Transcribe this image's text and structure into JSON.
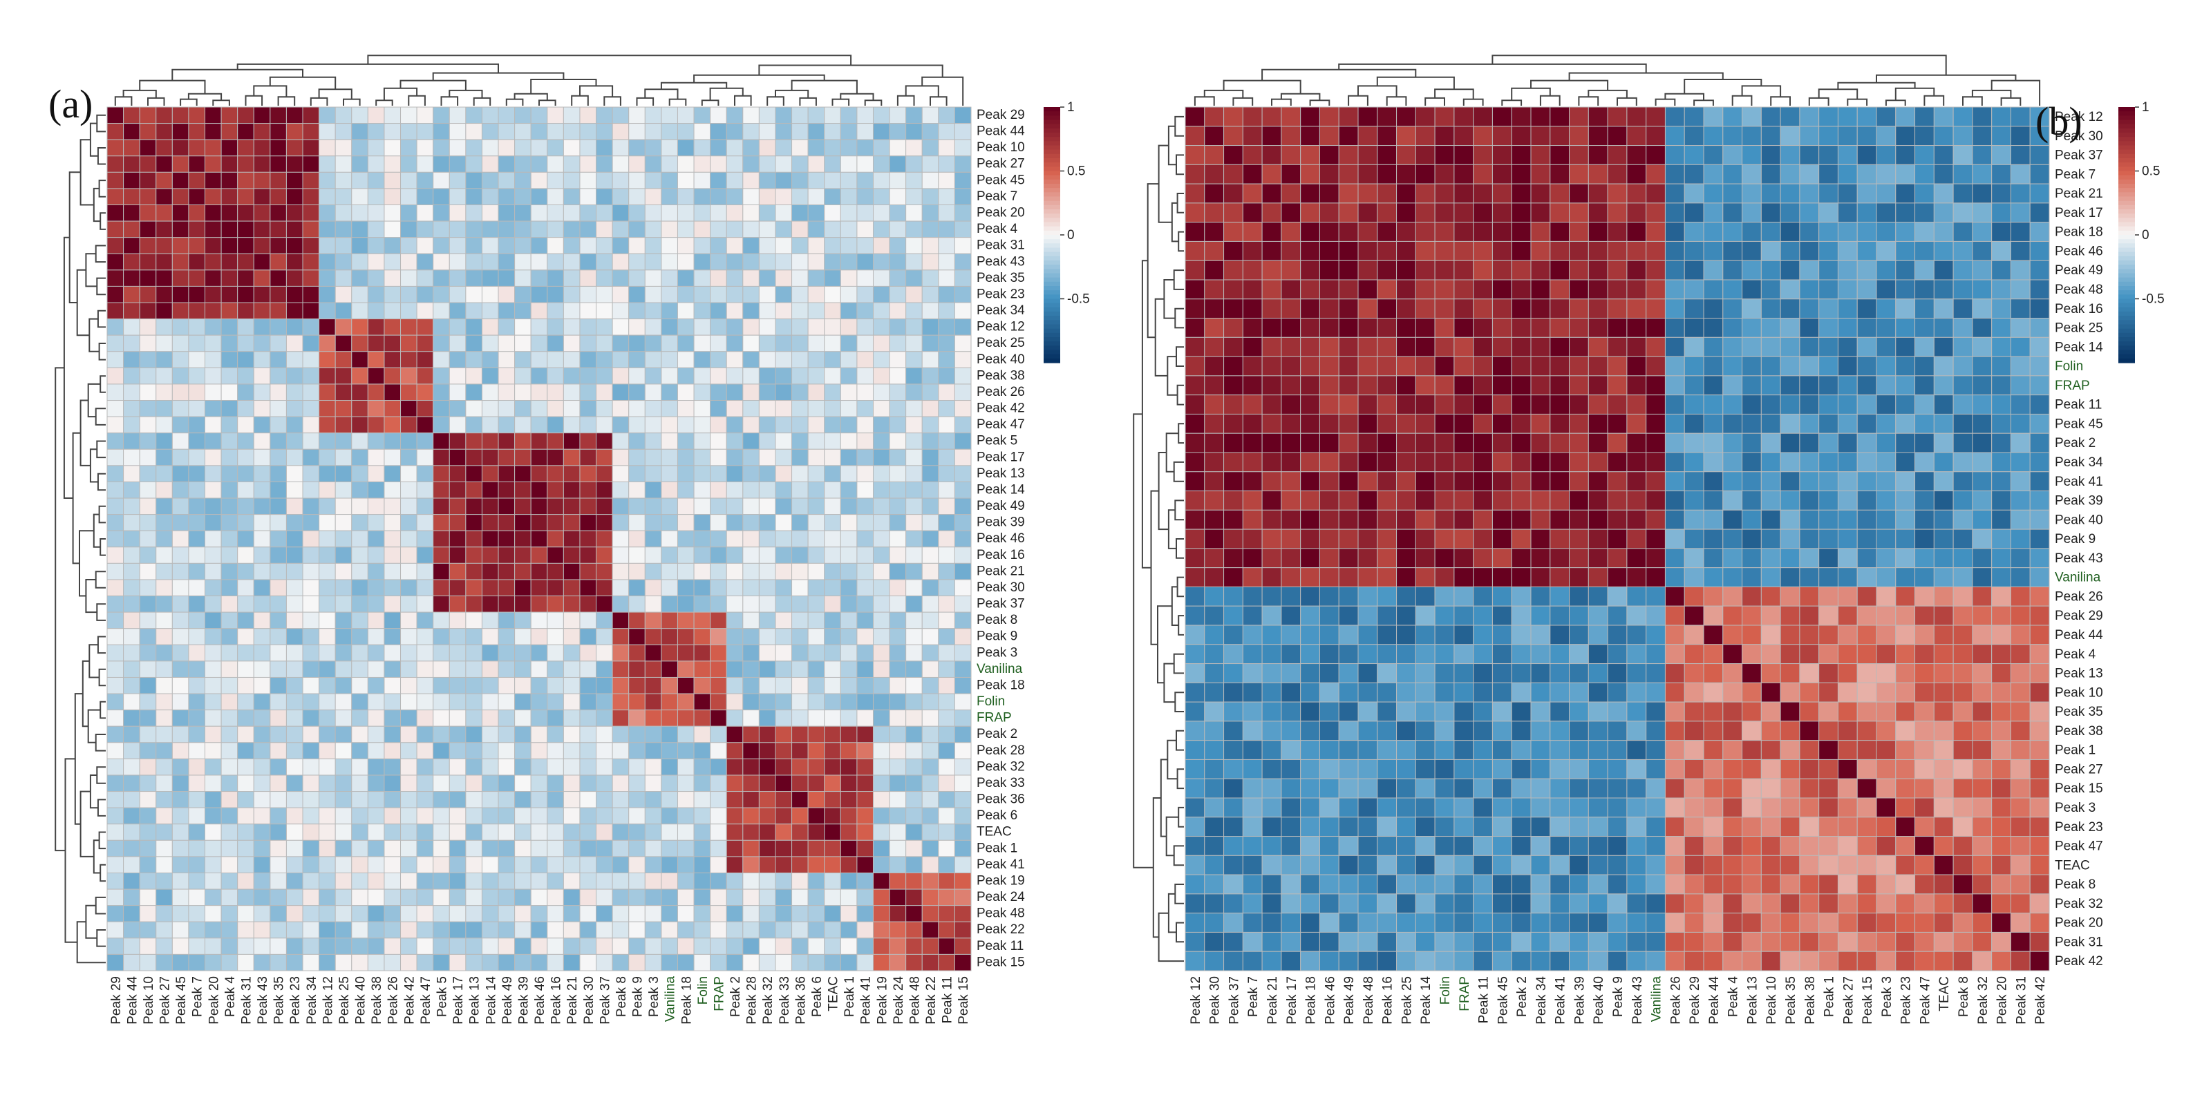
{
  "chart_data": [
    {
      "type": "heatmap",
      "panel_label": "(a)",
      "title": "",
      "row_labels": [
        "Peak 29",
        "Peak 44",
        "Peak 10",
        "Peak 27",
        "Peak 45",
        "Peak 7",
        "Peak 20",
        "Peak 4",
        "Peak 31",
        "Peak 43",
        "Peak 35",
        "Peak 23",
        "Peak 34",
        "Peak 12",
        "Peak 25",
        "Peak 40",
        "Peak 38",
        "Peak 26",
        "Peak 42",
        "Peak 47",
        "Peak 5",
        "Peak 17",
        "Peak 13",
        "Peak 14",
        "Peak 49",
        "Peak 39",
        "Peak 46",
        "Peak 16",
        "Peak 21",
        "Peak 30",
        "Peak 37",
        "Peak 8",
        "Peak 9",
        "Peak 3",
        "Vanilina",
        "Peak 18",
        "Folin",
        "FRAP",
        "Peak 2",
        "Peak 28",
        "Peak 32",
        "Peak 33",
        "Peak 36",
        "Peak 6",
        "TEAC",
        "Peak 1",
        "Peak 41",
        "Peak 19",
        "Peak 24",
        "Peak 48",
        "Peak 22",
        "Peak 11",
        "Peak 15"
      ],
      "col_labels": [
        "Peak 29",
        "Peak 44",
        "Peak 10",
        "Peak 27",
        "Peak 45",
        "Peak 7",
        "Peak 20",
        "Peak 4",
        "Peak 31",
        "Peak 43",
        "Peak 35",
        "Peak 23",
        "Peak 34",
        "Peak 12",
        "Peak 25",
        "Peak 40",
        "Peak 38",
        "Peak 26",
        "Peak 42",
        "Peak 47",
        "Peak 5",
        "Peak 17",
        "Peak 13",
        "Peak 14",
        "Peak 49",
        "Peak 39",
        "Peak 46",
        "Peak 16",
        "Peak 21",
        "Peak 30",
        "Peak 37",
        "Peak 8",
        "Peak 9",
        "Peak 3",
        "Vanilina",
        "Peak 18",
        "Folin",
        "FRAP",
        "Peak 2",
        "Peak 28",
        "Peak 32",
        "Peak 33",
        "Peak 36",
        "Peak 6",
        "TEAC",
        "Peak 1",
        "Peak 41",
        "Peak 19",
        "Peak 24",
        "Peak 48",
        "Peak 22",
        "Peak 11",
        "Peak 15"
      ],
      "clusters": [
        {
          "range": [
            0,
            12
          ],
          "value": 0.85
        },
        {
          "range": [
            13,
            19
          ],
          "value": 0.6
        },
        {
          "range": [
            20,
            30
          ],
          "value": 0.8
        },
        {
          "range": [
            31,
            37
          ],
          "value": 0.55
        },
        {
          "range": [
            38,
            46
          ],
          "value": 0.65
        },
        {
          "range": [
            47,
            52
          ],
          "value": 0.6
        }
      ],
      "colorbar": {
        "min": -1,
        "max": 1,
        "ticks": [
          "1",
          "0.5",
          "0",
          "-0.5"
        ]
      },
      "colors": {
        "neg": "#053061",
        "mid": "#f7f7f7",
        "pos": "#67001f"
      }
    },
    {
      "type": "heatmap",
      "panel_label": "(b)",
      "title": "",
      "row_labels": [
        "Peak 12",
        "Peak 30",
        "Peak 37",
        "Peak 7",
        "Peak 21",
        "Peak 17",
        "Peak 18",
        "Peak 46",
        "Peak 49",
        "Peak 48",
        "Peak 16",
        "Peak 25",
        "Peak 14",
        "Folin",
        "FRAP",
        "Peak 11",
        "Peak 45",
        "Peak 2",
        "Peak 34",
        "Peak 41",
        "Peak 39",
        "Peak 40",
        "Peak 9",
        "Peak 43",
        "Vanilina",
        "Peak 26",
        "Peak 29",
        "Peak 44",
        "Peak 4",
        "Peak 13",
        "Peak 10",
        "Peak 35",
        "Peak 38",
        "Peak 1",
        "Peak 27",
        "Peak 15",
        "Peak 3",
        "Peak 23",
        "Peak 47",
        "TEAC",
        "Peak 8",
        "Peak 32",
        "Peak 20",
        "Peak 31",
        "Peak 42"
      ],
      "col_labels": [
        "Peak 12",
        "Peak 30",
        "Peak 37",
        "Peak 7",
        "Peak 21",
        "Peak 17",
        "Peak 18",
        "Peak 46",
        "Peak 49",
        "Peak 48",
        "Peak 16",
        "Peak 25",
        "Peak 14",
        "Folin",
        "FRAP",
        "Peak 11",
        "Peak 45",
        "Peak 2",
        "Peak 34",
        "Peak 41",
        "Peak 39",
        "Peak 40",
        "Peak 9",
        "Peak 43",
        "Vanilina",
        "Peak 26",
        "Peak 29",
        "Peak 44",
        "Peak 4",
        "Peak 13",
        "Peak 10",
        "Peak 35",
        "Peak 38",
        "Peak 1",
        "Peak 27",
        "Peak 15",
        "Peak 3",
        "Peak 23",
        "Peak 47",
        "TEAC",
        "Peak 8",
        "Peak 32",
        "Peak 20",
        "Peak 31",
        "Peak 42"
      ],
      "clusters": [
        {
          "range": [
            0,
            24
          ],
          "value": 0.85
        },
        {
          "range": [
            25,
            44
          ],
          "value": 0.45
        }
      ],
      "cross_block": {
        "rows": [
          0,
          24
        ],
        "cols": [
          25,
          44
        ],
        "value": -0.55
      },
      "colorbar": {
        "min": -1,
        "max": 1,
        "ticks": [
          "1",
          "0.5",
          "0",
          "-0.5"
        ]
      },
      "colors": {
        "neg": "#053061",
        "mid": "#f7f7f7",
        "pos": "#67001f"
      }
    }
  ]
}
